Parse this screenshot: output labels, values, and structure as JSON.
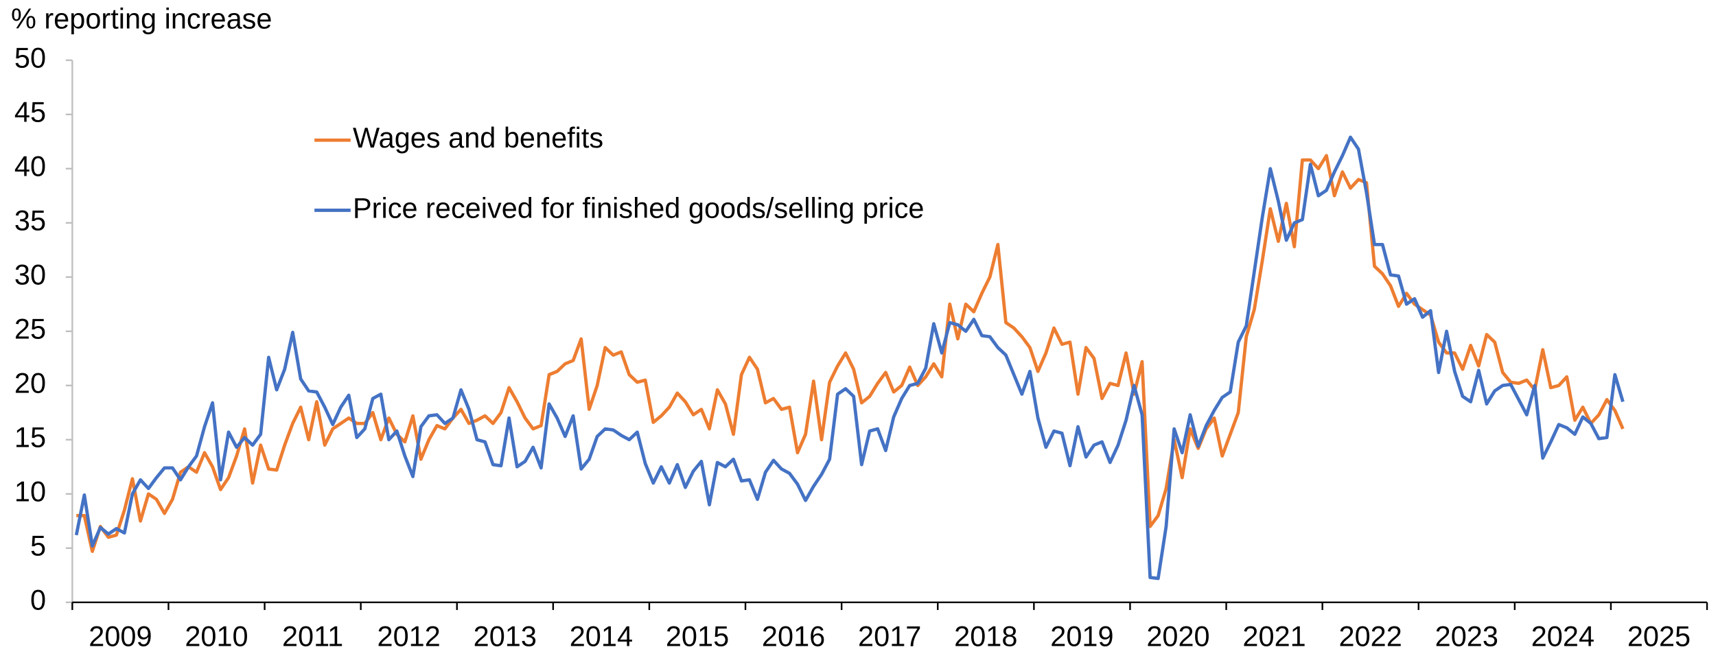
{
  "chart_data": {
    "type": "line",
    "y_axis_label": "% reporting increase",
    "year_labels": [
      "2009",
      "2010",
      "2011",
      "2012",
      "2013",
      "2014",
      "2015",
      "2016",
      "2017",
      "2018",
      "2019",
      "2020",
      "2021",
      "2022",
      "2023",
      "2024",
      "2025"
    ],
    "ylim": [
      0,
      50
    ],
    "yticks": [
      0,
      5,
      10,
      15,
      20,
      25,
      30,
      35,
      40,
      45,
      50
    ],
    "legend": "upper left",
    "series": [
      {
        "name": "Wages and benefits",
        "color": "#ED7D31",
        "values": [
          8,
          8,
          4.7,
          7,
          6,
          6.2,
          8.5,
          11.4,
          7.5,
          10,
          9.5,
          8.2,
          9.5,
          12,
          12.5,
          12,
          13.8,
          12.5,
          10.4,
          11.5,
          13.5,
          16,
          11,
          14.5,
          12.3,
          12.2,
          14.5,
          16.5,
          18,
          15,
          18.5,
          14.5,
          16,
          16.5,
          17,
          16.5,
          16.5,
          17.5,
          15,
          17,
          15.5,
          14.8,
          17.2,
          13.2,
          15,
          16.3,
          16,
          17,
          17.8,
          16.5,
          16.8,
          17.2,
          16.5,
          17.5,
          19.8,
          18.5,
          17,
          16,
          16.3,
          21,
          21.3,
          22,
          22.3,
          24.3,
          17.8,
          20,
          23.5,
          22.8,
          23.1,
          21,
          20.3,
          20.5,
          16.6,
          17.2,
          18,
          19.3,
          18.5,
          17.3,
          17.8,
          16,
          19.6,
          18.3,
          15.5,
          21,
          22.6,
          21.5,
          18.4,
          18.8,
          17.8,
          18,
          13.8,
          15.5,
          20.4,
          15,
          20.3,
          21.8,
          23,
          21.5,
          18.4,
          19,
          20.2,
          21.2,
          19.4,
          20,
          21.7,
          20,
          20.8,
          22,
          20.8,
          27.5,
          24.3,
          27.5,
          26.8,
          28.5,
          30,
          33,
          25.8,
          25.3,
          24.5,
          23.5,
          21.3,
          23,
          25.3,
          23.8,
          24,
          19.2,
          23.5,
          22.5,
          18.8,
          20.2,
          20,
          23,
          19.2,
          22.2,
          7,
          8,
          10.5,
          15,
          11.5,
          16,
          14.2,
          16,
          17,
          13.5,
          15.5,
          17.5,
          24.5,
          27,
          31.5,
          36.3,
          33.3,
          36.8,
          32.8,
          40.8,
          40.8,
          40,
          41.2,
          37.5,
          39.7,
          38.2,
          39,
          38.7,
          31,
          30.3,
          29.2,
          27.3,
          28.5,
          27.5,
          27,
          26.5,
          24,
          23,
          23,
          21.5,
          23.7,
          21.8,
          24.7,
          24,
          21.2,
          20.3,
          20.2,
          20.5,
          19.6,
          23.3,
          19.8,
          20,
          20.8,
          16.8,
          18,
          16.5,
          17.3,
          18.7,
          17.7,
          16
        ]
      },
      {
        "name": "Price received for finished goods/selling price",
        "color": "#4472C4",
        "values": [
          6.2,
          9.9,
          5.2,
          6.9,
          6.3,
          6.8,
          6.4,
          10,
          11.3,
          10.5,
          11.5,
          12.4,
          12.4,
          11.3,
          12.5,
          13.5,
          16.2,
          18.4,
          11.3,
          15.7,
          14.3,
          15.2,
          14.5,
          15.5,
          22.6,
          19.6,
          21.5,
          24.9,
          20.6,
          19.5,
          19.4,
          18,
          16.4,
          18,
          19.1,
          15.2,
          16,
          18.8,
          19.2,
          15,
          15.8,
          13.5,
          11.6,
          16.2,
          17.2,
          17.3,
          16.5,
          17,
          19.6,
          17.8,
          15,
          14.8,
          12.7,
          12.6,
          17,
          12.5,
          13,
          14.3,
          12.4,
          18.3,
          17,
          15.3,
          17.2,
          12.3,
          13.2,
          15.3,
          16,
          15.9,
          15.4,
          15,
          15.7,
          12.8,
          11,
          12.5,
          11,
          12.7,
          10.6,
          12.1,
          13,
          9,
          12.9,
          12.5,
          13.2,
          11.2,
          11.3,
          9.5,
          12,
          13.1,
          12.3,
          11.9,
          10.9,
          9.4,
          10.7,
          11.8,
          13.2,
          19.2,
          19.7,
          19,
          12.7,
          15.8,
          16,
          14,
          17.1,
          18.8,
          20,
          20.2,
          21.6,
          25.7,
          23,
          25.8,
          25.6,
          25,
          26.1,
          24.6,
          24.5,
          23.5,
          22.8,
          21,
          19.2,
          21.3,
          17,
          14.3,
          15.8,
          15.6,
          12.6,
          16.2,
          13.4,
          14.5,
          14.8,
          12.9,
          14.5,
          16.8,
          20,
          17.3,
          2.3,
          2.2,
          7,
          16,
          13.8,
          17.3,
          14.4,
          16.3,
          17.7,
          18.9,
          19.4,
          24,
          25.5,
          30.5,
          35.5,
          40,
          37,
          33.4,
          35,
          35.3,
          40.4,
          37.5,
          38,
          39.7,
          41.2,
          42.9,
          41.8,
          37.8,
          33,
          33,
          30.2,
          30.1,
          27.5,
          28,
          26.3,
          26.9,
          21.2,
          25,
          21.3,
          19,
          18.5,
          21.4,
          18.3,
          19.5,
          20,
          20.1,
          18.7,
          17.3,
          20,
          13.3,
          14.8,
          16.4,
          16.1,
          15.5,
          17.1,
          16.5,
          15.1,
          15.2,
          21,
          18.5
        ]
      }
    ]
  }
}
